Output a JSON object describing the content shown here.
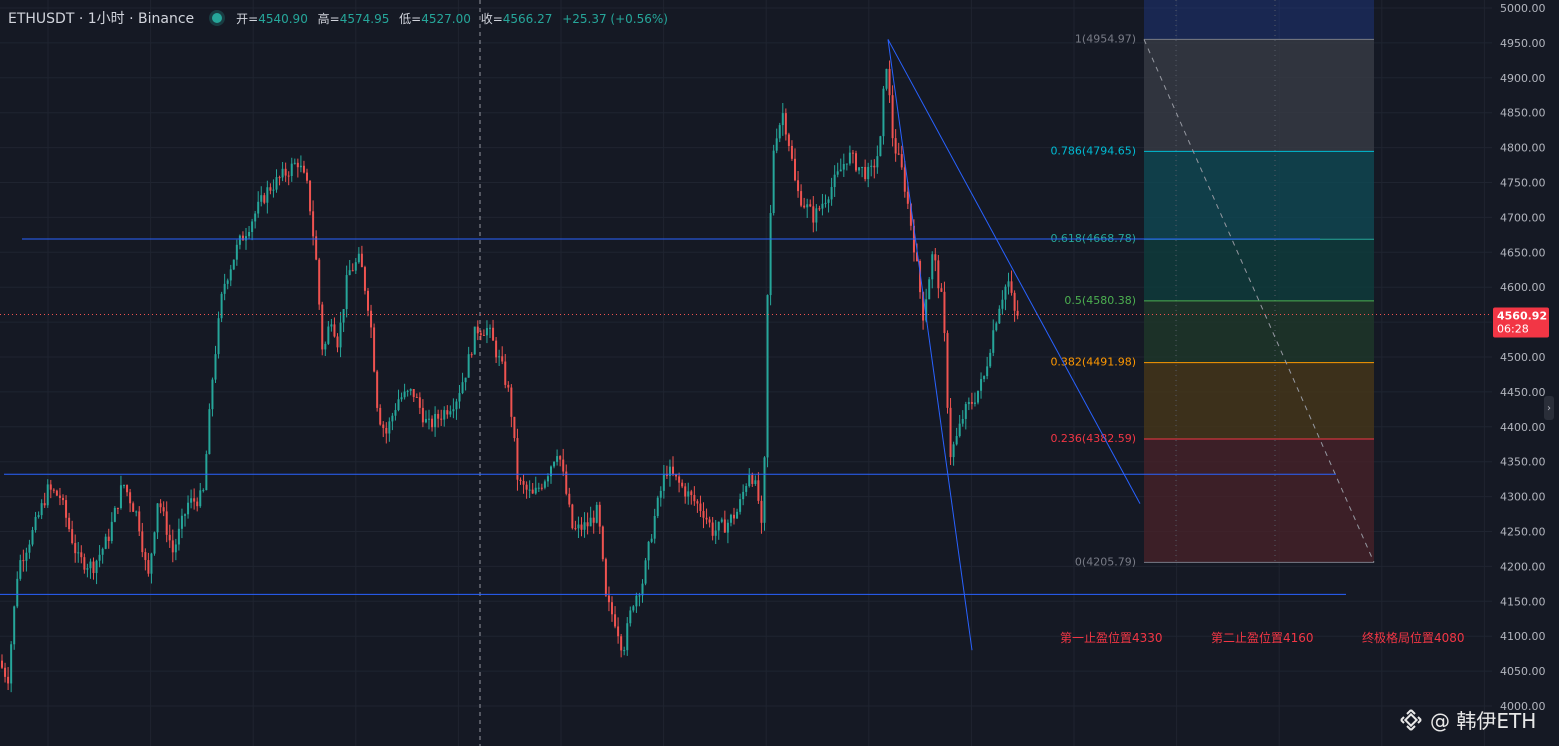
{
  "header": {
    "symbol": "ETHUSDT · 1小时 · Binance",
    "open_label": "开=",
    "open_value": "4540.90",
    "high_label": "高=",
    "high_value": "4574.95",
    "low_label": "低=",
    "low_value": "4527.00",
    "close_label": "收=",
    "close_value": "4566.27",
    "change": "+25.37 (+0.56%)"
  },
  "watermark": {
    "text": "@ 韩伊ETH",
    "logo": "binance-diamond-icon"
  },
  "colors": {
    "background": "#151924",
    "up": "#26a69a",
    "down": "#ef5350",
    "trendline": "#2962ff",
    "price_label_bg": "#f23645"
  },
  "chart_data": {
    "type": "candlestick",
    "symbol": "ETHUSDT",
    "interval": "1小时",
    "exchange": "Binance",
    "ylim": [
      4000,
      5000
    ],
    "y_ticks": [
      4000,
      4050,
      4100,
      4150,
      4200,
      4250,
      4300,
      4350,
      4400,
      4450,
      4500,
      4550,
      4600,
      4650,
      4700,
      4750,
      4800,
      4850,
      4900,
      4950,
      5000
    ],
    "y_tick_labels": [
      "4000.00",
      "4050.00",
      "4100.00",
      "4150.00",
      "4200.00",
      "4250.00",
      "4300.00",
      "4350.00",
      "4400.00",
      "4450.00",
      "4500.00",
      "4550.00",
      "4600.00",
      "4650.00",
      "4700.00",
      "4750.00",
      "4800.00",
      "4850.00",
      "4900.00",
      "4950.00",
      "5000.00"
    ],
    "current_price": {
      "value": 4560.92,
      "label": "4560.92",
      "countdown": "06:28"
    },
    "price_path": [
      [
        0,
        4065
      ],
      [
        10,
        4040
      ],
      [
        20,
        4200
      ],
      [
        35,
        4250
      ],
      [
        50,
        4310
      ],
      [
        62,
        4300
      ],
      [
        80,
        4210
      ],
      [
        95,
        4200
      ],
      [
        110,
        4240
      ],
      [
        125,
        4320
      ],
      [
        140,
        4270
      ],
      [
        150,
        4180
      ],
      [
        160,
        4300
      ],
      [
        175,
        4220
      ],
      [
        190,
        4290
      ],
      [
        205,
        4300
      ],
      [
        215,
        4480
      ],
      [
        225,
        4600
      ],
      [
        240,
        4660
      ],
      [
        255,
        4700
      ],
      [
        270,
        4740
      ],
      [
        285,
        4760
      ],
      [
        300,
        4780
      ],
      [
        310,
        4740
      ],
      [
        318,
        4640
      ],
      [
        325,
        4500
      ],
      [
        333,
        4560
      ],
      [
        340,
        4520
      ],
      [
        350,
        4620
      ],
      [
        362,
        4640
      ],
      [
        372,
        4560
      ],
      [
        380,
        4420
      ],
      [
        388,
        4390
      ],
      [
        400,
        4440
      ],
      [
        415,
        4450
      ],
      [
        430,
        4400
      ],
      [
        445,
        4420
      ],
      [
        458,
        4440
      ],
      [
        468,
        4480
      ],
      [
        478,
        4540
      ],
      [
        490,
        4540
      ],
      [
        505,
        4480
      ],
      [
        512,
        4440
      ],
      [
        520,
        4320
      ],
      [
        535,
        4300
      ],
      [
        548,
        4330
      ],
      [
        560,
        4370
      ],
      [
        575,
        4250
      ],
      [
        590,
        4260
      ],
      [
        600,
        4280
      ],
      [
        608,
        4150
      ],
      [
        618,
        4120
      ],
      [
        625,
        4080
      ],
      [
        635,
        4150
      ],
      [
        645,
        4180
      ],
      [
        655,
        4260
      ],
      [
        668,
        4340
      ],
      [
        680,
        4320
      ],
      [
        692,
        4300
      ],
      [
        705,
        4280
      ],
      [
        715,
        4250
      ],
      [
        728,
        4260
      ],
      [
        740,
        4280
      ],
      [
        752,
        4340
      ],
      [
        760,
        4300
      ],
      [
        765,
        4230
      ],
      [
        770,
        4620
      ],
      [
        776,
        4810
      ],
      [
        785,
        4850
      ],
      [
        792,
        4800
      ],
      [
        798,
        4740
      ],
      [
        806,
        4720
      ],
      [
        816,
        4700
      ],
      [
        828,
        4730
      ],
      [
        840,
        4760
      ],
      [
        850,
        4790
      ],
      [
        862,
        4770
      ],
      [
        872,
        4760
      ],
      [
        882,
        4800
      ],
      [
        888,
        4930
      ],
      [
        895,
        4810
      ],
      [
        905,
        4760
      ],
      [
        912,
        4700
      ],
      [
        918,
        4640
      ],
      [
        925,
        4560
      ],
      [
        935,
        4650
      ],
      [
        945,
        4570
      ],
      [
        952,
        4360
      ],
      [
        958,
        4380
      ],
      [
        966,
        4420
      ],
      [
        976,
        4440
      ],
      [
        986,
        4470
      ],
      [
        994,
        4530
      ],
      [
        1002,
        4580
      ],
      [
        1010,
        4610
      ],
      [
        1017,
        4560
      ]
    ],
    "horizontal_lines": [
      4669,
      4332,
      4160
    ],
    "trendlines": [
      {
        "from": [
          888,
          4955
        ],
        "to": [
          1140,
          4290
        ]
      },
      {
        "from": [
          888,
          4955
        ],
        "to": [
          972,
          4080
        ]
      }
    ],
    "crosshair_x_px_note": "",
    "fibonacci": {
      "levels": [
        {
          "ratio": "1",
          "price": 4954.97,
          "label": "1(4954.97)",
          "color": "#787b86"
        },
        {
          "ratio": "0.786",
          "price": 4794.65,
          "label": "0.786(4794.65)",
          "color": "#00bcd4"
        },
        {
          "ratio": "0.618",
          "price": 4668.78,
          "label": "0.618(4668.78)",
          "color": "#26a69a"
        },
        {
          "ratio": "0.5",
          "price": 4580.38,
          "label": "0.5(4580.38)",
          "color": "#4caf50"
        },
        {
          "ratio": "0.382",
          "price": 4491.98,
          "label": "0.382(4491.98)",
          "color": "#ff9800"
        },
        {
          "ratio": "0.236",
          "price": 4382.59,
          "label": "0.236(4382.59)",
          "color": "#f23645"
        },
        {
          "ratio": "0",
          "price": 4205.79,
          "label": "0(4205.79)",
          "color": "#787b86"
        }
      ],
      "top_band_color": "#1e3a8a"
    },
    "annotations": [
      {
        "text": "第一止盈位置4330",
        "color": "#f23645"
      },
      {
        "text": "第二止盈位置4160",
        "color": "#f23645"
      },
      {
        "text": "终极格局位置4080",
        "color": "#f23645"
      }
    ]
  }
}
